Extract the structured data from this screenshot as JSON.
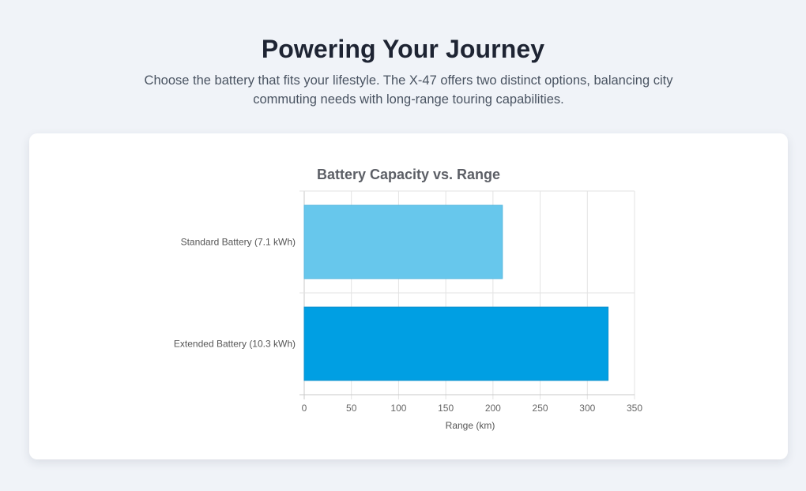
{
  "header": {
    "title": "Powering Your Journey",
    "subtitle": "Choose the battery that fits your lifestyle. The X-47 offers two distinct options, balancing city commuting needs with long-range touring capabilities."
  },
  "chart_data": {
    "type": "bar",
    "orientation": "horizontal",
    "title": "Battery Capacity vs. Range",
    "xlabel": "Range (km)",
    "ylabel": "",
    "categories": [
      "Standard Battery (7.1 kWh)",
      "Extended Battery (10.3 kWh)"
    ],
    "values": [
      210,
      322
    ],
    "colors": [
      "#67c7ec",
      "#009fe3"
    ],
    "xlim": [
      0,
      350
    ],
    "xticks": [
      0,
      50,
      100,
      150,
      200,
      250,
      300,
      350
    ],
    "grid": true,
    "legend": "none"
  }
}
